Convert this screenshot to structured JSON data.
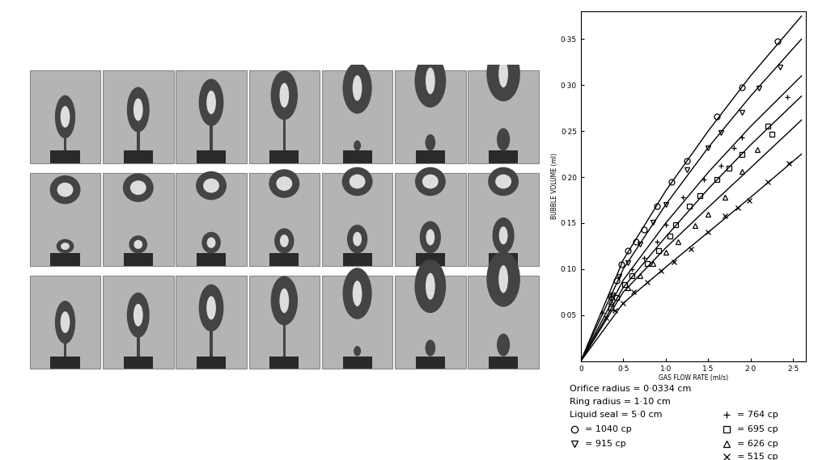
{
  "chart_data": {
    "type": "scatter",
    "x_label": "GAS FLOW RATE (ml/s)",
    "y_label": "BUBBLE VOLUME (ml)",
    "xlim": [
      0,
      2.65
    ],
    "ylim": [
      0,
      0.38
    ],
    "xticks": [
      0,
      {
        "value": 0.5,
        "label": "0·5"
      },
      {
        "value": 1.0,
        "label": "1·0"
      },
      {
        "value": 1.5,
        "label": "1·5"
      },
      {
        "value": 2.0,
        "label": "2·0"
      },
      {
        "value": 2.5,
        "label": "2·5"
      }
    ],
    "yticks": [
      {
        "value": 0.05,
        "label": "0·05"
      },
      {
        "value": 0.1,
        "label": "0·10"
      },
      {
        "value": 0.15,
        "label": "0·15"
      },
      {
        "value": 0.2,
        "label": "0·20"
      },
      {
        "value": 0.25,
        "label": "0·25"
      },
      {
        "value": 0.3,
        "label": "0·30"
      },
      {
        "value": 0.35,
        "label": "0·35"
      }
    ],
    "grid": false,
    "annotations": [
      "Orifice radius = 0·0334 cm",
      "Ring radius = 1·10 cm",
      "Liquid seal = 5·0 cm"
    ],
    "series": [
      {
        "name": "= 1040 cp",
        "color": "#000000",
        "marker": "o",
        "x": [
          0.35,
          0.42,
          0.48,
          0.55,
          0.65,
          0.75,
          0.9,
          1.07,
          1.25,
          1.6,
          1.9,
          2.32
        ],
        "values": [
          0.07,
          0.088,
          0.105,
          0.12,
          0.13,
          0.143,
          0.168,
          0.195,
          0.218,
          0.266,
          0.298,
          0.348
        ],
        "curve_x": [
          0,
          0.5,
          1.0,
          1.5,
          2.0,
          2.6
        ],
        "curve_values": [
          0,
          0.11,
          0.185,
          0.25,
          0.31,
          0.375
        ]
      },
      {
        "name": "= 915 cp",
        "color": "#000000",
        "marker": "v",
        "x": [
          0.37,
          0.45,
          0.55,
          0.7,
          0.85,
          1.0,
          1.25,
          1.5,
          1.65,
          1.9,
          2.1,
          2.35
        ],
        "values": [
          0.072,
          0.092,
          0.107,
          0.127,
          0.151,
          0.17,
          0.208,
          0.232,
          0.248,
          0.27,
          0.297,
          0.32
        ],
        "curve_x": [
          0,
          0.5,
          1.0,
          1.5,
          2.0,
          2.6
        ],
        "curve_values": [
          0,
          0.1,
          0.17,
          0.232,
          0.288,
          0.35
        ]
      },
      {
        "name": "= 764 cp",
        "color": "#000000",
        "marker": "+",
        "x": [
          0.25,
          0.35,
          0.6,
          0.75,
          0.9,
          1.0,
          1.2,
          1.45,
          1.65,
          1.8,
          1.9,
          2.43
        ],
        "values": [
          0.052,
          0.07,
          0.1,
          0.112,
          0.13,
          0.148,
          0.178,
          0.197,
          0.212,
          0.232,
          0.243,
          0.287
        ],
        "curve_x": [
          0,
          0.5,
          1.0,
          1.5,
          2.0,
          2.6
        ],
        "curve_values": [
          0,
          0.088,
          0.15,
          0.205,
          0.255,
          0.31
        ]
      },
      {
        "name": "= 695 cp",
        "color": "#000000",
        "marker": "s",
        "x": [
          0.35,
          0.42,
          0.52,
          0.6,
          0.78,
          0.92,
          1.05,
          1.12,
          1.28,
          1.4,
          1.6,
          1.75,
          1.9,
          2.2,
          2.25
        ],
        "values": [
          0.058,
          0.069,
          0.083,
          0.093,
          0.106,
          0.12,
          0.136,
          0.148,
          0.168,
          0.18,
          0.197,
          0.21,
          0.225,
          0.255,
          0.247
        ],
        "curve_x": [
          0,
          0.5,
          1.0,
          1.5,
          2.0,
          2.6
        ],
        "curve_values": [
          0,
          0.08,
          0.135,
          0.187,
          0.235,
          0.288
        ]
      },
      {
        "name": "= 626 cp",
        "color": "#000000",
        "marker": "^",
        "x": [
          0.35,
          0.55,
          0.7,
          0.85,
          1.0,
          1.15,
          1.35,
          1.5,
          1.7,
          1.9,
          2.08
        ],
        "values": [
          0.065,
          0.08,
          0.093,
          0.106,
          0.118,
          0.13,
          0.147,
          0.16,
          0.178,
          0.206,
          0.23
        ],
        "curve_x": [
          0,
          0.5,
          1.0,
          1.5,
          2.0,
          2.6
        ],
        "curve_values": [
          0,
          0.075,
          0.123,
          0.167,
          0.21,
          0.262
        ]
      },
      {
        "name": "= 515 cp",
        "color": "#000000",
        "marker": "x",
        "x": [
          0.3,
          0.4,
          0.5,
          0.62,
          0.78,
          0.95,
          1.1,
          1.3,
          1.5,
          1.7,
          1.85,
          1.98,
          2.2,
          2.45
        ],
        "values": [
          0.047,
          0.055,
          0.063,
          0.075,
          0.086,
          0.098,
          0.108,
          0.122,
          0.14,
          0.158,
          0.167,
          0.175,
          0.195,
          0.215
        ],
        "curve_x": [
          0,
          0.5,
          1.0,
          1.5,
          2.0,
          2.6
        ],
        "curve_values": [
          0,
          0.063,
          0.102,
          0.14,
          0.178,
          0.225
        ]
      }
    ]
  }
}
